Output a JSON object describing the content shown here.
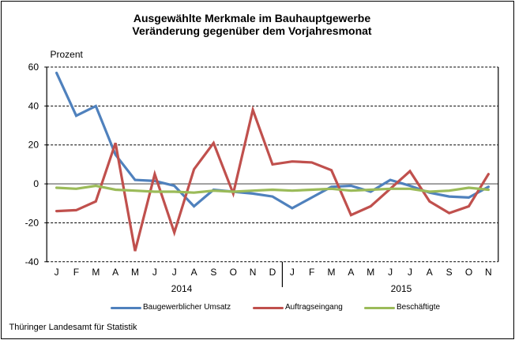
{
  "title": {
    "line1": "Ausgewählte Merkmale im Bauhauptgewerbe",
    "line2": "Veränderung gegenüber dem Vorjahresmonat"
  },
  "footer": {
    "source": "Thüringer Landesamt für Statistik"
  },
  "chart_data": {
    "type": "line",
    "title": "Ausgewählte Merkmale im Bauhauptgewerbe",
    "subtitle": "Veränderung gegenüber dem Vorjahresmonat",
    "ylabel": "Prozent",
    "xlabel": "",
    "ylim": [
      -40,
      60
    ],
    "yticks": [
      60,
      40,
      20,
      0,
      -20,
      -40
    ],
    "grid": "horizontal dashed, solid zero line",
    "legend_position": "bottom",
    "x_months": [
      "J",
      "F",
      "M",
      "A",
      "M",
      "J",
      "J",
      "A",
      "S",
      "O",
      "N",
      "D",
      "J",
      "F",
      "M",
      "A",
      "M",
      "J",
      "J",
      "A",
      "S",
      "O",
      "N"
    ],
    "x_years": [
      {
        "label": "2014",
        "months": 12
      },
      {
        "label": "2015",
        "months": 11
      }
    ],
    "series": [
      {
        "name": "Baugewerblicher Umsatz",
        "color": "#4f81bd",
        "values": [
          57,
          35,
          40,
          15,
          2,
          1.5,
          -1,
          -11.5,
          -3,
          -4,
          -5,
          -6.5,
          -12.5,
          -7,
          -1.5,
          -1,
          -4,
          2,
          -1,
          -4.5,
          -6.5,
          -7,
          -1.5
        ]
      },
      {
        "name": "Auftragseingang",
        "color": "#c0504d",
        "values": [
          -14,
          -13.5,
          -9,
          21,
          -34.5,
          5,
          -25,
          7.5,
          21,
          -5,
          38,
          10,
          11.5,
          11,
          7,
          -16,
          -11.5,
          -2.5,
          6.5,
          -9,
          -15,
          -11.5,
          5
        ]
      },
      {
        "name": "Beschäftigte",
        "color": "#9bbb59",
        "values": [
          -2,
          -2.5,
          -1,
          -3,
          -3.5,
          -4,
          -4,
          -4.5,
          -3.5,
          -4,
          -3.5,
          -3,
          -3.5,
          -3,
          -2.5,
          -3.5,
          -3,
          -2.5,
          -2.5,
          -4,
          -3.5,
          -2,
          -3
        ]
      }
    ]
  }
}
